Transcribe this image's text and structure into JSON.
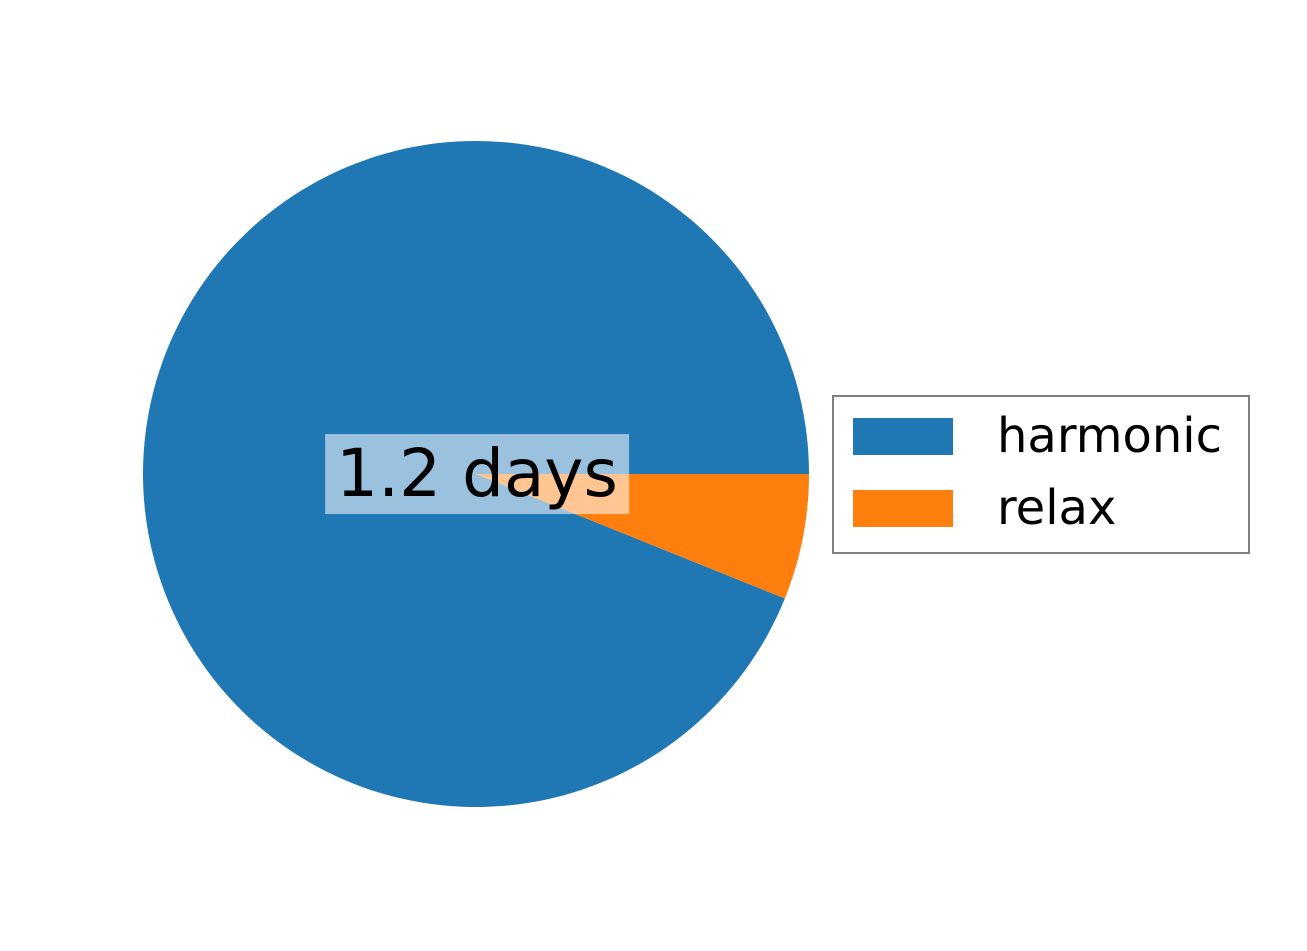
{
  "chart_data": {
    "type": "pie",
    "title": "",
    "labels": [
      "harmonic",
      "relax"
    ],
    "values": [
      93.9,
      6.1
    ],
    "unit": "percent",
    "colors": [
      "#1f77b4",
      "#ff7f0e"
    ],
    "start_angle_deg": 0,
    "direction": "counterclockwise",
    "center_label": "1.2 days",
    "background": "#ffffff",
    "center_label_background": "rgba(255,255,255,0.55)",
    "legend": {
      "position": "center right",
      "border_color": "#808080",
      "entries": [
        "harmonic",
        "relax"
      ]
    }
  }
}
